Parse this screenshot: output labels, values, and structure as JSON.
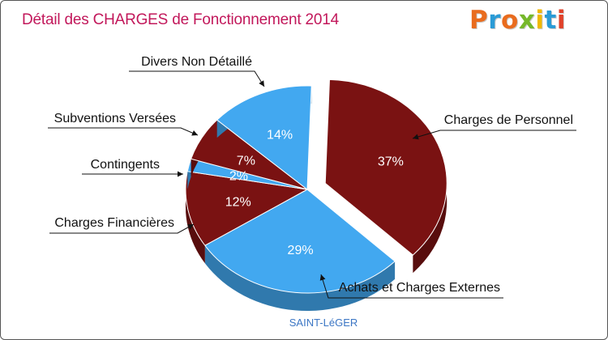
{
  "title": "Détail des CHARGES de Fonctionnement 2014",
  "logo": {
    "text": "Proxiti",
    "letters": [
      "P",
      "r",
      "o",
      "x",
      "i",
      "t",
      "i"
    ],
    "colors": [
      "#e96c1e",
      "#2a9bd6",
      "#e96c1e",
      "#76b82a",
      "#f0b800",
      "#2a9bd6",
      "#e0412a"
    ]
  },
  "chart_data": {
    "type": "pie",
    "title": "Détail des CHARGES de Fonctionnement 2014",
    "subtitle": "SAINT-LéGER",
    "unit": "%",
    "slices": [
      {
        "label": "Charges de Personnel",
        "value": 37,
        "display": "37%",
        "color": "#7a1212",
        "exploded": true
      },
      {
        "label": "Achats et Charges Externes",
        "value": 29,
        "display": "29%",
        "color": "#42a8f0",
        "exploded": false
      },
      {
        "label": "Charges Financières",
        "value": 12,
        "display": "12%",
        "color": "#7a1212",
        "exploded": false
      },
      {
        "label": "Contingents",
        "value": 2,
        "display": "2%",
        "color": "#42a8f0",
        "exploded": false
      },
      {
        "label": "Subventions Versées",
        "value": 7,
        "display": "7%",
        "color": "#7a1212",
        "exploded": false
      },
      {
        "label": "Divers Non Détaillé",
        "value": 14,
        "display": "14%",
        "color": "#42a8f0",
        "exploded": false
      }
    ]
  }
}
